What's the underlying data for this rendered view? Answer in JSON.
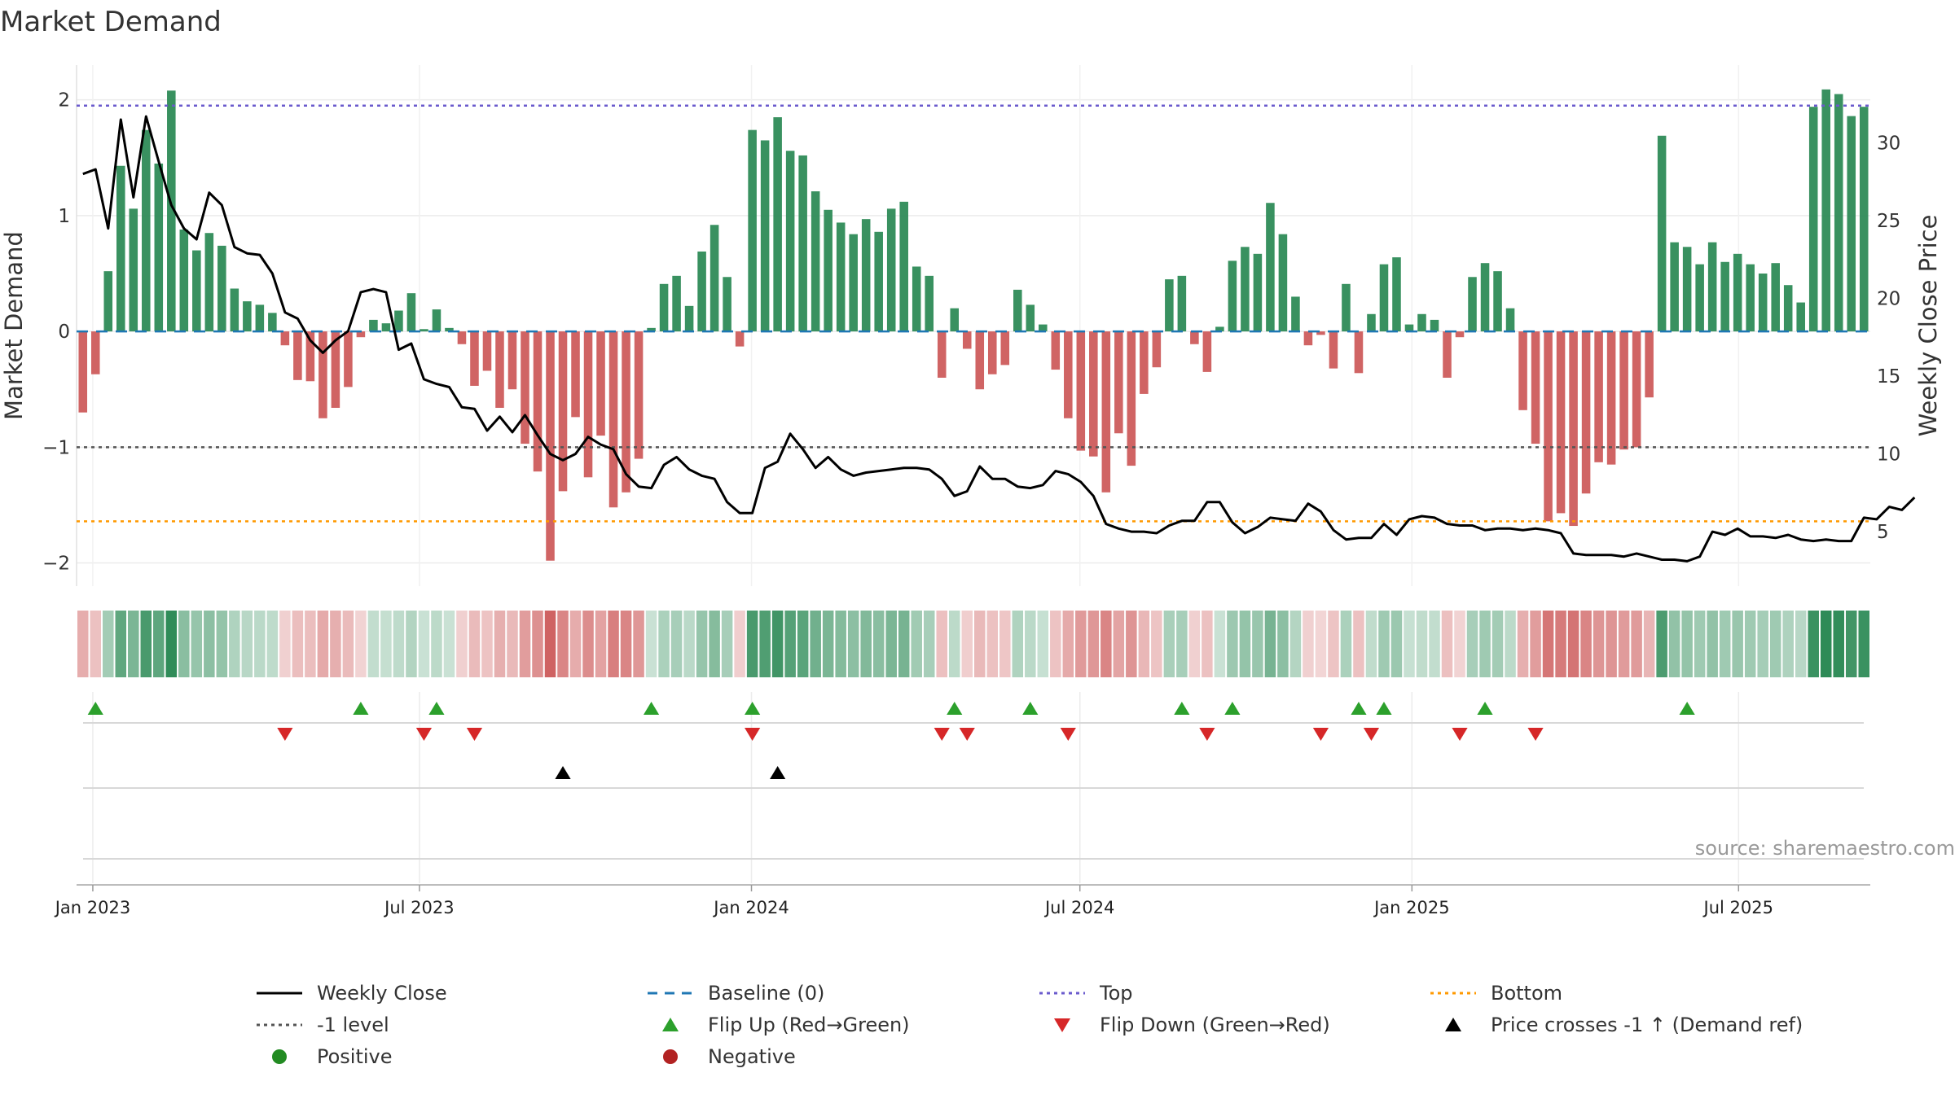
{
  "chart_data": {
    "type": "bar",
    "title": "Market Demand",
    "ylabel": "Market Demand",
    "y2label": "Weekly Close Price",
    "ylim": [
      -2.2,
      2.3
    ],
    "y2lim": [
      1.5,
      35.0
    ],
    "yticks": [
      2,
      1,
      0,
      -1,
      -2
    ],
    "ytick_labels": [
      "2",
      "1",
      "0",
      "−1",
      "−2"
    ],
    "y2ticks": [
      30,
      25,
      20,
      15,
      10,
      5
    ],
    "x_start": "2022-12-23",
    "x_end": "2025-09-12",
    "xticks": [
      {
        "date": "2023-01-01",
        "label": "Jan 2023"
      },
      {
        "date": "2023-07-01",
        "label": "Jul 2023"
      },
      {
        "date": "2024-01-01",
        "label": "Jan 2024"
      },
      {
        "date": "2024-07-01",
        "label": "Jul 2024"
      },
      {
        "date": "2025-01-01",
        "label": "Jan 2025"
      },
      {
        "date": "2025-07-01",
        "label": "Jul 2025"
      }
    ],
    "reference_lines": {
      "top": 1.95,
      "minus_one": -1.0,
      "bottom": -1.64,
      "baseline": 0
    },
    "demand": [
      -0.7,
      -0.37,
      0.52,
      1.43,
      1.06,
      1.74,
      1.45,
      2.08,
      0.88,
      0.7,
      0.85,
      0.74,
      0.37,
      0.26,
      0.23,
      0.16,
      -0.12,
      -0.42,
      -0.43,
      -0.75,
      -0.66,
      -0.48,
      -0.05,
      0.1,
      0.07,
      0.18,
      0.33,
      0.02,
      0.19,
      0.03,
      -0.11,
      -0.47,
      -0.34,
      -0.66,
      -0.5,
      -0.97,
      -1.21,
      -1.98,
      -1.38,
      -0.74,
      -1.26,
      -0.9,
      -1.52,
      -1.39,
      -1.1,
      0.03,
      0.41,
      0.48,
      0.22,
      0.69,
      0.92,
      0.47,
      -0.13,
      1.74,
      1.65,
      1.85,
      1.56,
      1.52,
      1.21,
      1.05,
      0.94,
      0.84,
      0.97,
      0.86,
      1.06,
      1.12,
      0.56,
      0.48,
      -0.4,
      0.2,
      -0.15,
      -0.5,
      -0.37,
      -0.29,
      0.36,
      0.23,
      0.06,
      -0.33,
      -0.75,
      -1.03,
      -1.08,
      -1.39,
      -0.88,
      -1.16,
      -0.54,
      -0.31,
      0.45,
      0.48,
      -0.11,
      -0.35,
      0.04,
      0.61,
      0.73,
      0.67,
      1.11,
      0.84,
      0.3,
      -0.12,
      -0.03,
      -0.32,
      0.41,
      -0.36,
      0.15,
      0.58,
      0.64,
      0.06,
      0.15,
      0.1,
      -0.4,
      -0.05,
      0.47,
      0.59,
      0.52,
      0.2,
      -0.68,
      -0.97,
      -1.64,
      -1.57,
      -1.68,
      -1.4,
      -1.13,
      -1.15,
      -1.02,
      -1.0,
      -0.57,
      1.69,
      0.77,
      0.73,
      0.58,
      0.77,
      0.6,
      0.67,
      0.58,
      0.5,
      0.59,
      0.4,
      0.25,
      1.94,
      2.09,
      2.05,
      1.86,
      1.94
    ],
    "weekly_close": [
      28.0,
      28.3,
      24.5,
      31.5,
      26.5,
      31.7,
      28.8,
      26.0,
      24.5,
      23.8,
      26.8,
      26.0,
      23.3,
      22.9,
      22.8,
      21.6,
      19.1,
      18.7,
      17.3,
      16.5,
      17.3,
      17.9,
      20.4,
      20.6,
      20.4,
      16.7,
      17.1,
      14.8,
      14.5,
      14.3,
      13.0,
      12.9,
      11.5,
      12.4,
      11.4,
      12.5,
      11.2,
      10.0,
      9.6,
      10.0,
      11.1,
      10.6,
      10.3,
      8.7,
      7.9,
      7.8,
      9.3,
      9.8,
      9.0,
      8.6,
      8.4,
      6.9,
      6.2,
      6.2,
      9.1,
      9.5,
      11.3,
      10.3,
      9.1,
      9.8,
      9.0,
      8.6,
      8.8,
      8.9,
      9.0,
      9.1,
      9.1,
      9.0,
      8.4,
      7.3,
      7.6,
      9.2,
      8.4,
      8.4,
      7.9,
      7.8,
      8.0,
      8.9,
      8.7,
      8.2,
      7.3,
      5.5,
      5.2,
      5.0,
      5.0,
      4.9,
      5.4,
      5.7,
      5.7,
      6.9,
      6.9,
      5.6,
      4.9,
      5.3,
      5.9,
      5.8,
      5.7,
      6.8,
      6.3,
      5.1,
      4.5,
      4.6,
      4.6,
      5.5,
      4.8,
      5.8,
      6.0,
      5.9,
      5.5,
      5.4,
      5.4,
      5.1,
      5.2,
      5.2,
      5.1,
      5.2,
      5.1,
      4.9,
      3.6,
      3.5,
      3.5,
      3.5,
      3.4,
      3.6,
      3.4,
      3.2,
      3.2,
      3.1,
      3.4,
      5.0,
      4.8,
      5.2,
      4.7,
      4.7,
      4.6,
      4.8,
      4.5,
      4.4,
      4.5,
      4.4,
      4.4,
      5.9,
      5.8,
      6.6,
      6.4,
      7.2
    ],
    "flip_up_weeks": [
      1,
      22,
      28,
      45,
      53,
      69,
      75,
      87,
      91,
      101,
      103,
      111,
      127
    ],
    "flip_down_weeks": [
      16,
      27,
      31,
      53,
      68,
      70,
      78,
      89,
      98,
      102,
      109,
      115
    ],
    "price_cross_weeks": [
      38,
      55
    ],
    "source_text": "source: sharemaestro.com",
    "colors": {
      "positive": "#2e8b57",
      "negative": "#cd5c5c",
      "price_line": "#000000",
      "baseline": "#1f77b4",
      "top": "#6a5acd",
      "minus_one": "#555555",
      "bottom": "#ff9900",
      "flip_up": "#2ca02c",
      "flip_down": "#d62728",
      "price_cross": "#000000",
      "dot_positive": "#228b22",
      "dot_negative": "#b22222"
    }
  },
  "legend": {
    "weekly_close": "Weekly Close",
    "minus_one": "-1 level",
    "positive": "Positive",
    "baseline": "Baseline (0)",
    "flip_up": "Flip Up (Red→Green)",
    "negative": "Negative",
    "top": "Top",
    "flip_down": "Flip Down (Green→Red)",
    "bottom": "Bottom",
    "price_cross": "Price crosses -1 ↑ (Demand ref)"
  }
}
